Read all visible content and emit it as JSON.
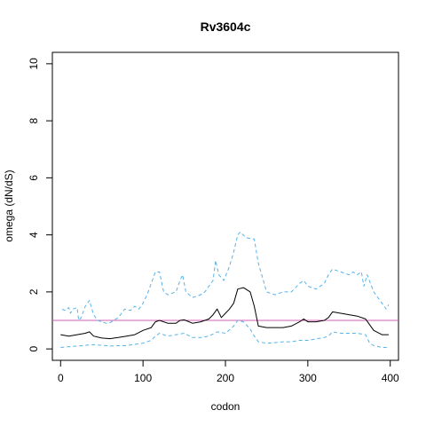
{
  "chart_data": {
    "type": "line",
    "title": "Rv3604c",
    "xlabel": "codon",
    "ylabel": "omega (dN/dS)",
    "xlim": [
      -10,
      410
    ],
    "ylim": [
      -0.4,
      10.4
    ],
    "xticks": [
      0,
      100,
      200,
      300,
      400
    ],
    "yticks": [
      0,
      2,
      4,
      6,
      8,
      10
    ],
    "xtick_labels": [
      "0",
      "100",
      "200",
      "300",
      "400"
    ],
    "ytick_labels": [
      "0",
      "2",
      "4",
      "6",
      "8",
      "10"
    ],
    "grid": false,
    "reference_line": {
      "y": 1,
      "color": "#d15fb0"
    },
    "series": [
      {
        "key": "omega",
        "color": "#000000",
        "dash": "solid",
        "points": [
          [
            0,
            0.5
          ],
          [
            10,
            0.45
          ],
          [
            20,
            0.5
          ],
          [
            30,
            0.55
          ],
          [
            35,
            0.6
          ],
          [
            40,
            0.45
          ],
          [
            50,
            0.38
          ],
          [
            60,
            0.36
          ],
          [
            70,
            0.4
          ],
          [
            80,
            0.45
          ],
          [
            90,
            0.5
          ],
          [
            100,
            0.65
          ],
          [
            110,
            0.75
          ],
          [
            115,
            0.95
          ],
          [
            120,
            1.0
          ],
          [
            130,
            0.9
          ],
          [
            140,
            0.9
          ],
          [
            145,
            1.0
          ],
          [
            150,
            1.02
          ],
          [
            160,
            0.9
          ],
          [
            170,
            0.95
          ],
          [
            180,
            1.05
          ],
          [
            185,
            1.2
          ],
          [
            190,
            1.4
          ],
          [
            195,
            1.1
          ],
          [
            200,
            1.25
          ],
          [
            205,
            1.4
          ],
          [
            210,
            1.6
          ],
          [
            215,
            2.1
          ],
          [
            222,
            2.15
          ],
          [
            230,
            2.0
          ],
          [
            235,
            1.5
          ],
          [
            240,
            0.8
          ],
          [
            250,
            0.75
          ],
          [
            260,
            0.75
          ],
          [
            270,
            0.75
          ],
          [
            280,
            0.8
          ],
          [
            290,
            0.95
          ],
          [
            295,
            1.05
          ],
          [
            300,
            0.95
          ],
          [
            310,
            0.95
          ],
          [
            320,
            1.0
          ],
          [
            325,
            1.1
          ],
          [
            330,
            1.3
          ],
          [
            340,
            1.25
          ],
          [
            350,
            1.2
          ],
          [
            360,
            1.15
          ],
          [
            370,
            1.05
          ],
          [
            380,
            0.65
          ],
          [
            390,
            0.5
          ],
          [
            398,
            0.5
          ]
        ]
      },
      {
        "key": "upper",
        "color": "#56b4e9",
        "dash": "dashed",
        "points": [
          [
            2,
            1.4
          ],
          [
            5,
            1.35
          ],
          [
            10,
            1.45
          ],
          [
            12,
            1.25
          ],
          [
            15,
            1.4
          ],
          [
            20,
            1.45
          ],
          [
            22,
            1.0
          ],
          [
            25,
            1.1
          ],
          [
            30,
            1.5
          ],
          [
            35,
            1.7
          ],
          [
            40,
            1.2
          ],
          [
            45,
            1.0
          ],
          [
            50,
            0.95
          ],
          [
            55,
            0.9
          ],
          [
            60,
            0.92
          ],
          [
            70,
            1.1
          ],
          [
            78,
            1.4
          ],
          [
            85,
            1.35
          ],
          [
            90,
            1.5
          ],
          [
            95,
            1.4
          ],
          [
            100,
            1.6
          ],
          [
            105,
            1.9
          ],
          [
            110,
            2.3
          ],
          [
            115,
            2.7
          ],
          [
            120,
            2.7
          ],
          [
            125,
            2.0
          ],
          [
            130,
            1.9
          ],
          [
            140,
            2.0
          ],
          [
            145,
            2.4
          ],
          [
            148,
            2.6
          ],
          [
            152,
            2.0
          ],
          [
            160,
            1.8
          ],
          [
            170,
            1.9
          ],
          [
            175,
            2.0
          ],
          [
            180,
            2.2
          ],
          [
            185,
            2.4
          ],
          [
            188,
            3.1
          ],
          [
            192,
            2.6
          ],
          [
            198,
            2.4
          ],
          [
            205,
            2.9
          ],
          [
            210,
            3.4
          ],
          [
            215,
            4.0
          ],
          [
            218,
            4.1
          ],
          [
            225,
            3.9
          ],
          [
            235,
            3.85
          ],
          [
            240,
            3.0
          ],
          [
            245,
            2.5
          ],
          [
            250,
            2.0
          ],
          [
            260,
            1.9
          ],
          [
            270,
            2.0
          ],
          [
            280,
            2.0
          ],
          [
            290,
            2.3
          ],
          [
            295,
            2.4
          ],
          [
            300,
            2.2
          ],
          [
            310,
            2.1
          ],
          [
            320,
            2.3
          ],
          [
            325,
            2.6
          ],
          [
            330,
            2.8
          ],
          [
            340,
            2.7
          ],
          [
            350,
            2.6
          ],
          [
            355,
            2.7
          ],
          [
            360,
            2.6
          ],
          [
            365,
            2.7
          ],
          [
            368,
            2.2
          ],
          [
            372,
            2.6
          ],
          [
            380,
            2.0
          ],
          [
            390,
            1.6
          ],
          [
            395,
            1.4
          ],
          [
            398,
            1.55
          ]
        ]
      },
      {
        "key": "lower",
        "color": "#56b4e9",
        "dash": "dashed",
        "points": [
          [
            0,
            0.05
          ],
          [
            20,
            0.1
          ],
          [
            40,
            0.15
          ],
          [
            60,
            0.1
          ],
          [
            80,
            0.12
          ],
          [
            100,
            0.2
          ],
          [
            110,
            0.3
          ],
          [
            115,
            0.45
          ],
          [
            120,
            0.55
          ],
          [
            130,
            0.45
          ],
          [
            140,
            0.5
          ],
          [
            150,
            0.55
          ],
          [
            160,
            0.4
          ],
          [
            170,
            0.4
          ],
          [
            180,
            0.45
          ],
          [
            190,
            0.6
          ],
          [
            200,
            0.55
          ],
          [
            210,
            0.8
          ],
          [
            215,
            1.0
          ],
          [
            222,
            0.95
          ],
          [
            230,
            0.7
          ],
          [
            235,
            0.45
          ],
          [
            240,
            0.25
          ],
          [
            250,
            0.2
          ],
          [
            260,
            0.22
          ],
          [
            270,
            0.25
          ],
          [
            280,
            0.25
          ],
          [
            290,
            0.3
          ],
          [
            300,
            0.3
          ],
          [
            310,
            0.35
          ],
          [
            320,
            0.4
          ],
          [
            325,
            0.45
          ],
          [
            330,
            0.6
          ],
          [
            340,
            0.55
          ],
          [
            360,
            0.55
          ],
          [
            370,
            0.5
          ],
          [
            375,
            0.2
          ],
          [
            380,
            0.12
          ],
          [
            390,
            0.05
          ],
          [
            398,
            0.05
          ]
        ]
      }
    ]
  }
}
